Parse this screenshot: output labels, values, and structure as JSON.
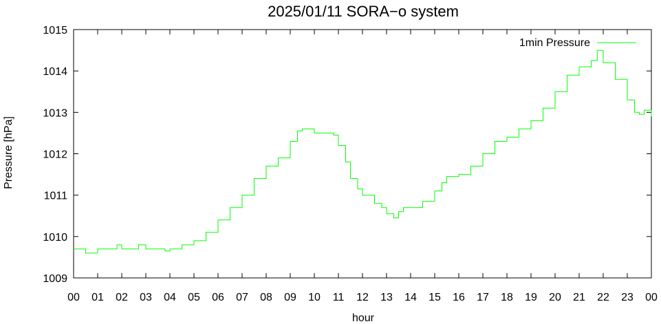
{
  "chart_data": {
    "type": "line",
    "title": "2025/01/11 SORA−o system",
    "xlabel": "hour",
    "ylabel": "Pressure [hPa]",
    "xlim": [
      0,
      24
    ],
    "ylim": [
      1009,
      1015
    ],
    "x_tick_labels": [
      "00",
      "01",
      "02",
      "03",
      "04",
      "05",
      "06",
      "07",
      "08",
      "09",
      "10",
      "11",
      "12",
      "13",
      "14",
      "15",
      "16",
      "17",
      "18",
      "19",
      "20",
      "21",
      "22",
      "23",
      "00"
    ],
    "y_ticks": [
      1009,
      1010,
      1011,
      1012,
      1013,
      1014,
      1015
    ],
    "y_tick_labels": [
      "1009",
      "1010",
      "1011",
      "1012",
      "1013",
      "1014",
      "1015"
    ],
    "legend_position": "top-right",
    "grid": false,
    "series": [
      {
        "name": "1min Pressure",
        "color": "#00ff00",
        "x": [
          0.0,
          0.5,
          0.7,
          1.0,
          1.5,
          1.8,
          2.0,
          2.5,
          2.7,
          3.0,
          3.5,
          3.8,
          4.0,
          4.5,
          4.7,
          5.0,
          5.5,
          6.0,
          6.5,
          7.0,
          7.5,
          8.0,
          8.5,
          9.0,
          9.3,
          9.5,
          9.7,
          10.0,
          10.5,
          10.8,
          11.0,
          11.3,
          11.5,
          11.8,
          12.0,
          12.5,
          12.8,
          13.0,
          13.3,
          13.5,
          13.7,
          14.0,
          14.5,
          15.0,
          15.3,
          15.5,
          16.0,
          16.5,
          17.0,
          17.5,
          18.0,
          18.5,
          19.0,
          19.5,
          20.0,
          20.5,
          21.0,
          21.5,
          21.75,
          22.0,
          22.5,
          23.0,
          23.3,
          23.5,
          23.7,
          24.0
        ],
        "y": [
          1009.7,
          1009.6,
          1009.6,
          1009.7,
          1009.7,
          1009.8,
          1009.7,
          1009.7,
          1009.8,
          1009.7,
          1009.7,
          1009.65,
          1009.7,
          1009.8,
          1009.8,
          1009.9,
          1010.1,
          1010.4,
          1010.7,
          1011.0,
          1011.4,
          1011.7,
          1011.9,
          1012.3,
          1012.55,
          1012.6,
          1012.6,
          1012.5,
          1012.5,
          1012.45,
          1012.2,
          1011.8,
          1011.4,
          1011.15,
          1011.0,
          1010.8,
          1010.7,
          1010.55,
          1010.45,
          1010.6,
          1010.7,
          1010.7,
          1010.85,
          1011.1,
          1011.3,
          1011.45,
          1011.5,
          1011.7,
          1012.0,
          1012.3,
          1012.4,
          1012.6,
          1012.8,
          1013.1,
          1013.5,
          1013.9,
          1014.1,
          1014.25,
          1014.5,
          1014.2,
          1013.8,
          1013.3,
          1013.0,
          1012.95,
          1013.05,
          1012.9
        ]
      }
    ]
  }
}
